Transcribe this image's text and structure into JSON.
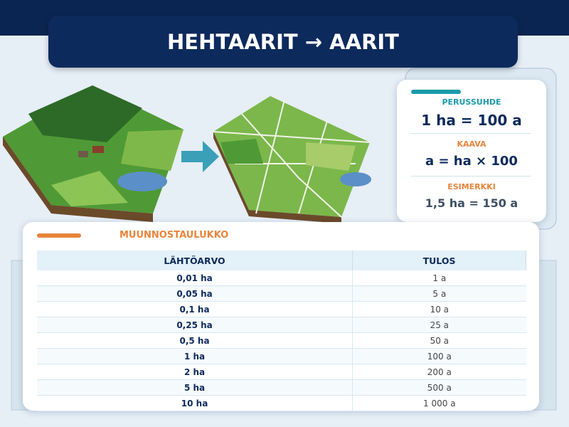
{
  "header": {
    "title": "HEHTAARIT → AARIT"
  },
  "info_card": {
    "items": [
      {
        "label": "PERUSSUHDE",
        "value": "1 ha = 100 a"
      },
      {
        "label": "KAAVA",
        "value": "a = ha × 100"
      },
      {
        "label": "ESIMERKKI",
        "value": "1,5 ha = 150 a"
      }
    ]
  },
  "table": {
    "title": "MUUNNOSTAULUKKO",
    "columns": [
      "LÄHTÖARVO",
      "TULOS"
    ],
    "rows": [
      [
        "0,01 ha",
        "1 a"
      ],
      [
        "0,05 ha",
        "5 a"
      ],
      [
        "0,1 ha",
        "10 a"
      ],
      [
        "0,25 ha",
        "25 a"
      ],
      [
        "0,5 ha",
        "50 a"
      ],
      [
        "1 ha",
        "100 a"
      ],
      [
        "2 ha",
        "200 a"
      ],
      [
        "5 ha",
        "500 a"
      ],
      [
        "10 ha",
        "1 000 a"
      ]
    ]
  }
}
